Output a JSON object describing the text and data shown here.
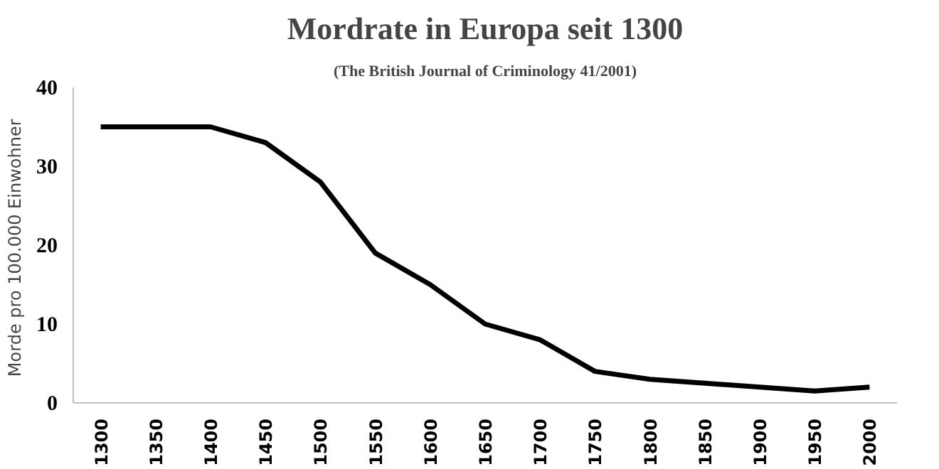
{
  "chart_data": {
    "type": "line",
    "title": "Mordrate in Europa seit 1300",
    "subtitle": "(The British Journal of Criminology 41/2001)",
    "ylabel": "Morde pro 100.000  Einwohner",
    "categories": [
      "1300",
      "1350",
      "1400",
      "1450",
      "1500",
      "1550",
      "1600",
      "1650",
      "1700",
      "1750",
      "1800",
      "1850",
      "1900",
      "1950",
      "2000"
    ],
    "series": [
      {
        "color": "#000000",
        "values": [
          35,
          35,
          35,
          33,
          28,
          19,
          15,
          10,
          8,
          4,
          3,
          2.5,
          2,
          1.5,
          2
        ]
      }
    ],
    "ylim": [
      0,
      40
    ],
    "yticks": [
      0,
      10,
      20,
      30,
      40
    ],
    "grid": false,
    "marker": "none",
    "line_style": "solid"
  }
}
